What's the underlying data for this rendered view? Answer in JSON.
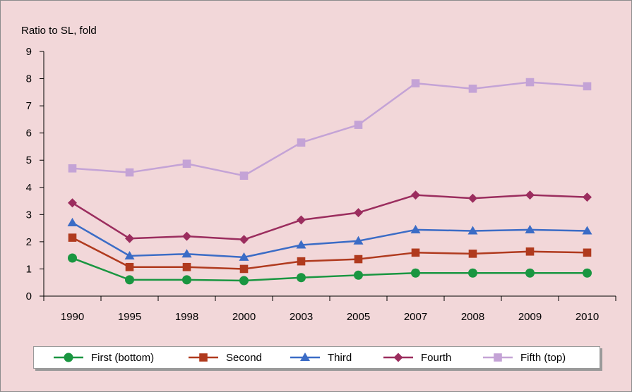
{
  "chart_data": {
    "type": "line",
    "title": "",
    "ylabel": "Ratio to SL, fold",
    "xlabel": "",
    "categories": [
      "1990",
      "1995",
      "1998",
      "2000",
      "2003",
      "2005",
      "2007",
      "2008",
      "2009",
      "2010"
    ],
    "ylim": [
      0,
      9
    ],
    "yticks": [
      0,
      1,
      2,
      3,
      4,
      5,
      6,
      7,
      8,
      9
    ],
    "legend_position": "bottom",
    "series": [
      {
        "name": "First (bottom)",
        "marker": "circle",
        "color": "#1a9641",
        "values": [
          1.4,
          0.6,
          0.6,
          0.57,
          0.68,
          0.77,
          0.85,
          0.85,
          0.85,
          0.85
        ]
      },
      {
        "name": "Second",
        "marker": "square",
        "color": "#b03a1e",
        "values": [
          2.15,
          1.07,
          1.07,
          1.0,
          1.28,
          1.36,
          1.6,
          1.56,
          1.64,
          1.6
        ]
      },
      {
        "name": "Third",
        "marker": "triangle",
        "color": "#3b6cc6",
        "values": [
          2.7,
          1.48,
          1.55,
          1.43,
          1.88,
          2.03,
          2.44,
          2.4,
          2.44,
          2.4
        ]
      },
      {
        "name": "Fourth",
        "marker": "diamond",
        "color": "#9b2d5e",
        "values": [
          3.43,
          2.12,
          2.2,
          2.08,
          2.8,
          3.07,
          3.72,
          3.6,
          3.72,
          3.64
        ]
      },
      {
        "name": "Fifth (top)",
        "marker": "square",
        "color": "#c4a3d6",
        "values": [
          4.7,
          4.55,
          4.87,
          4.43,
          5.65,
          6.3,
          7.83,
          7.63,
          7.87,
          7.72
        ]
      }
    ]
  }
}
